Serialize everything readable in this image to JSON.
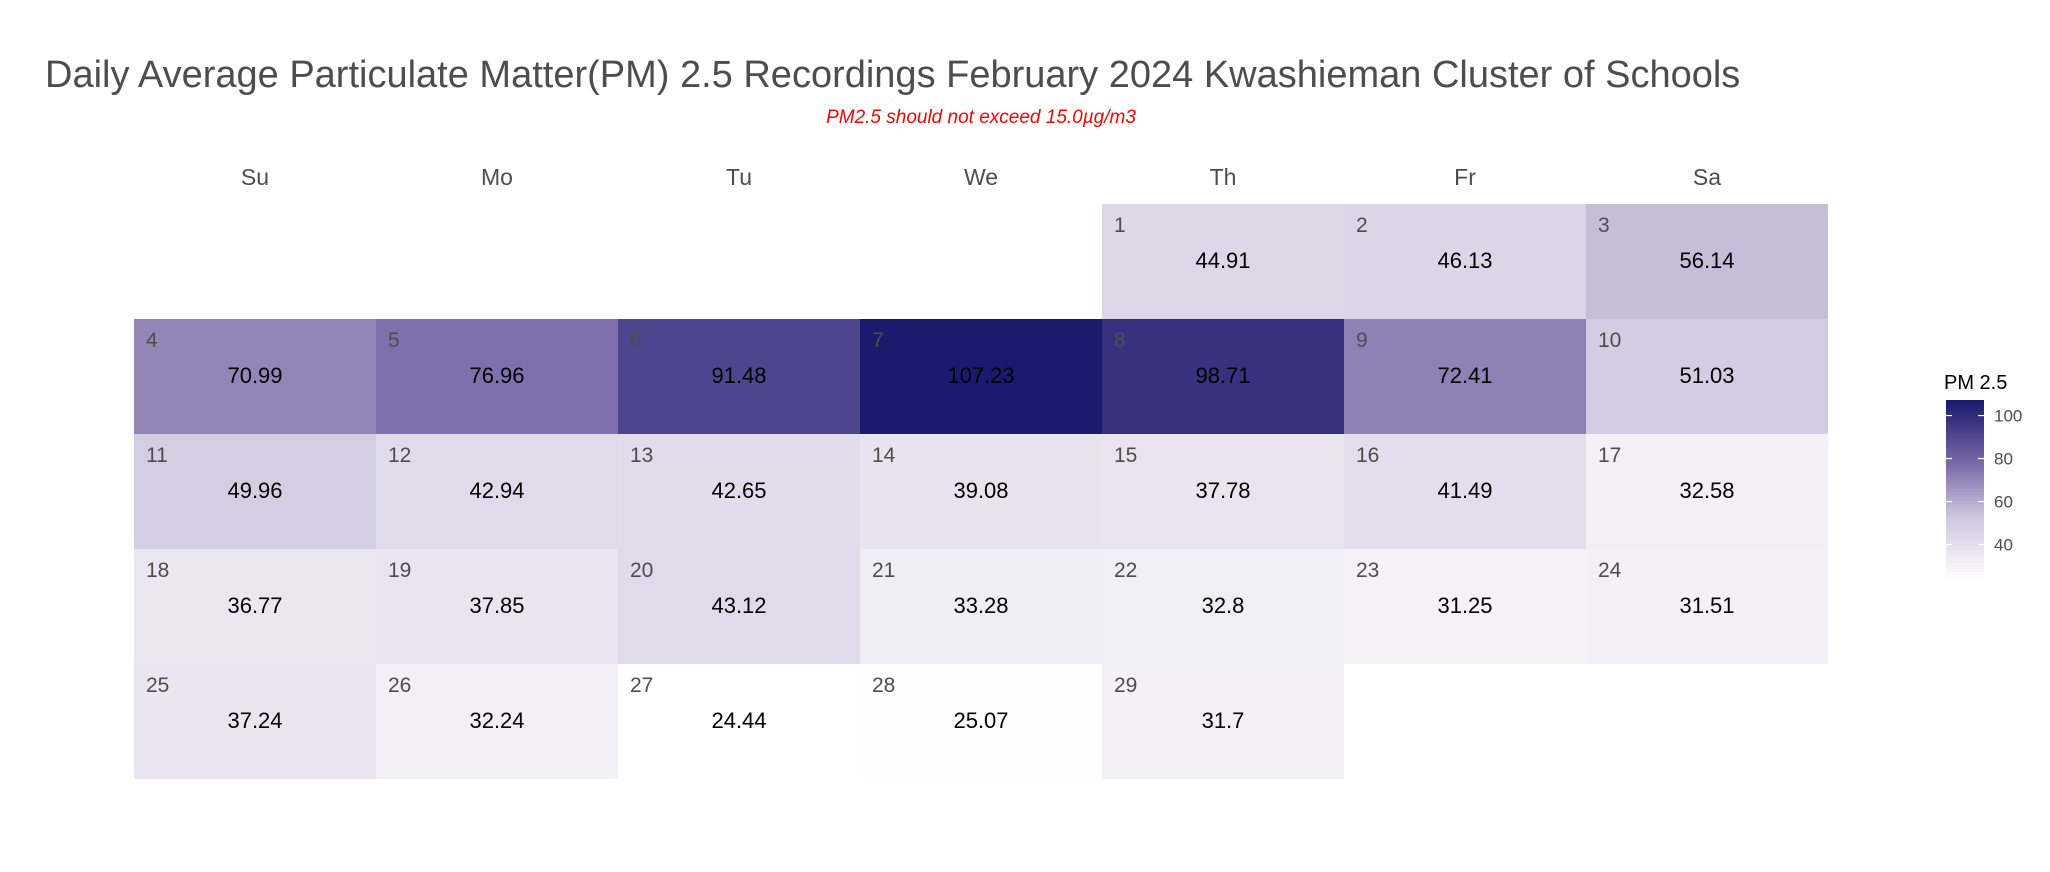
{
  "chart_data": {
    "type": "heatmap",
    "title": "Daily Average Particulate Matter(PM) 2.5 Recordings February 2024 Kwashieman Cluster of Schools",
    "subtitle": "PM2.5 should not exceed 15.0µg/m3",
    "weekdays": [
      "Su",
      "Mo",
      "Tu",
      "We",
      "Th",
      "Fr",
      "Sa"
    ],
    "first_weekday_index": 4,
    "days": [
      1,
      2,
      3,
      4,
      5,
      6,
      7,
      8,
      9,
      10,
      11,
      12,
      13,
      14,
      15,
      16,
      17,
      18,
      19,
      20,
      21,
      22,
      23,
      24,
      25,
      26,
      27,
      28,
      29
    ],
    "values": [
      44.91,
      46.13,
      56.14,
      70.99,
      76.96,
      91.48,
      107.23,
      98.71,
      72.41,
      51.03,
      49.96,
      42.94,
      42.65,
      39.08,
      37.78,
      41.49,
      32.58,
      36.77,
      37.85,
      43.12,
      33.28,
      32.8,
      31.25,
      31.51,
      37.24,
      32.24,
      24.44,
      25.07,
      31.7
    ],
    "value_labels": [
      "44.91",
      "46.13",
      "56.14",
      "70.99",
      "76.96",
      "91.48",
      "107.23",
      "98.71",
      "72.41",
      "51.03",
      "49.96",
      "42.94",
      "42.65",
      "39.08",
      "37.78",
      "41.49",
      "32.58",
      "36.77",
      "37.85",
      "43.12",
      "33.28",
      "32.8",
      "31.25",
      "31.51",
      "37.24",
      "32.24",
      "24.44",
      "25.07",
      "31.7"
    ],
    "legend": {
      "title": "PM 2.5",
      "ticks": [
        40,
        60,
        80,
        100
      ],
      "position": "right"
    },
    "color_scale": {
      "low": "#ffffff",
      "high": "#1a1a6e",
      "min": 24.44,
      "max": 107.23
    }
  }
}
